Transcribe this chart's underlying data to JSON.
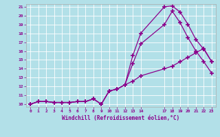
{
  "xlabel": "Windchill (Refroidissement éolien,°C)",
  "background_color": "#b2e0e8",
  "line_color": "#8b008b",
  "xlim": [
    -0.5,
    23.5
  ],
  "ylim": [
    9.7,
    21.3
  ],
  "xticks": [
    0,
    1,
    2,
    3,
    4,
    5,
    6,
    7,
    8,
    9,
    10,
    11,
    12,
    13,
    14,
    17,
    18,
    19,
    20,
    21,
    22,
    23
  ],
  "yticks": [
    10,
    11,
    12,
    13,
    14,
    15,
    16,
    17,
    18,
    19,
    20,
    21
  ],
  "line1_x": [
    0,
    1,
    2,
    3,
    4,
    5,
    6,
    7,
    8,
    9,
    10,
    11,
    12,
    13,
    14,
    17,
    18,
    19,
    20,
    21,
    22,
    23
  ],
  "line1_y": [
    10,
    10.3,
    10.3,
    10.2,
    10.2,
    10.2,
    10.3,
    10.3,
    10.6,
    10.0,
    11.5,
    11.7,
    12.2,
    15.5,
    18.0,
    21.0,
    21.1,
    20.4,
    19.0,
    17.3,
    16.2,
    14.8
  ],
  "line2_x": [
    0,
    1,
    2,
    3,
    4,
    5,
    6,
    7,
    8,
    9,
    10,
    11,
    12,
    13,
    14,
    17,
    18,
    19,
    20,
    21,
    22,
    23
  ],
  "line2_y": [
    10,
    10.3,
    10.3,
    10.2,
    10.2,
    10.2,
    10.3,
    10.3,
    10.6,
    10.0,
    11.5,
    11.7,
    12.2,
    14.6,
    16.8,
    19.0,
    20.5,
    19.2,
    17.5,
    16.0,
    14.8,
    13.5
  ],
  "line3_x": [
    0,
    1,
    2,
    3,
    4,
    5,
    6,
    7,
    8,
    9,
    10,
    11,
    12,
    13,
    14,
    17,
    18,
    19,
    20,
    21,
    22,
    23
  ],
  "line3_y": [
    10,
    10.3,
    10.3,
    10.2,
    10.2,
    10.2,
    10.3,
    10.3,
    10.6,
    10.0,
    11.5,
    11.7,
    12.2,
    12.6,
    13.2,
    14.0,
    14.3,
    14.8,
    15.3,
    15.8,
    16.3,
    14.8
  ]
}
